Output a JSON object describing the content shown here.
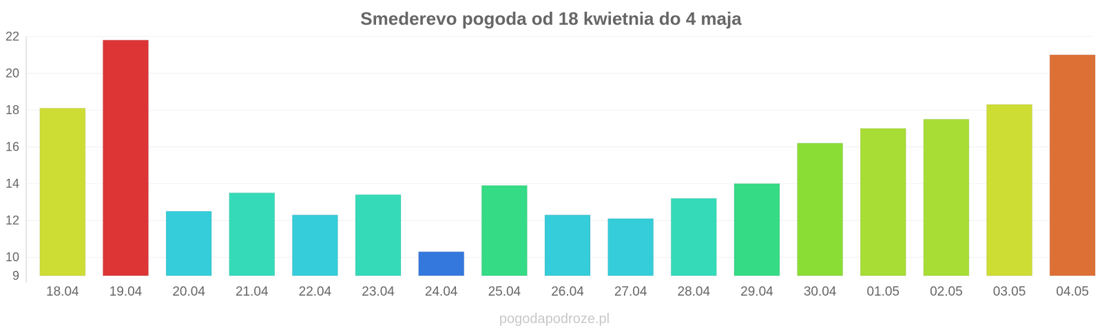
{
  "chart_data": {
    "type": "bar",
    "title": "Smederevo pogoda od 18 kwietnia do 4 maja",
    "categories": [
      "18.04",
      "19.04",
      "20.04",
      "21.04",
      "22.04",
      "23.04",
      "24.04",
      "25.04",
      "26.04",
      "27.04",
      "28.04",
      "29.04",
      "30.04",
      "01.05",
      "02.05",
      "03.05",
      "04.05"
    ],
    "values": [
      18.1,
      21.8,
      12.5,
      13.5,
      12.3,
      13.4,
      10.3,
      13.9,
      12.3,
      12.1,
      13.2,
      14.0,
      16.2,
      17.0,
      17.5,
      18.3,
      21.0
    ],
    "colors": [
      "#cddd34",
      "#dd3535",
      "#35cdd9",
      "#35dbb9",
      "#35cdd9",
      "#35dbb9",
      "#3578dd",
      "#35db85",
      "#35cdd9",
      "#35cdd9",
      "#35dbb9",
      "#35db85",
      "#8add35",
      "#a8dd35",
      "#a8dd35",
      "#cddd34",
      "#dd7035"
    ],
    "yticks": [
      9,
      10,
      12,
      14,
      16,
      18,
      20,
      22
    ],
    "ylim": [
      9,
      22
    ],
    "grid": true,
    "xlabel": "",
    "ylabel": ""
  },
  "watermark": "pogodapodroze.pl"
}
